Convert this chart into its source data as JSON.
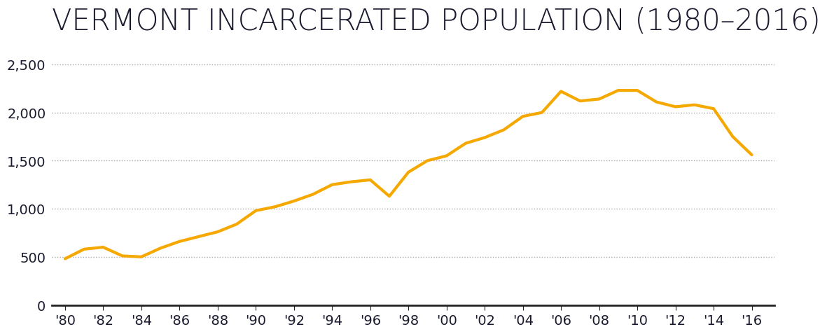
{
  "title": "VERMONT INCARCERATED POPULATION (1980–2016)",
  "line_color": "#F5A800",
  "line_width": 3.0,
  "background_color": "#ffffff",
  "years": [
    1980,
    1981,
    1982,
    1983,
    1984,
    1985,
    1986,
    1987,
    1988,
    1989,
    1990,
    1991,
    1992,
    1993,
    1994,
    1995,
    1996,
    1997,
    1998,
    1999,
    2000,
    2001,
    2002,
    2003,
    2004,
    2005,
    2006,
    2007,
    2008,
    2009,
    2010,
    2011,
    2012,
    2013,
    2014,
    2015,
    2016
  ],
  "values": [
    480,
    580,
    600,
    510,
    500,
    590,
    660,
    710,
    760,
    840,
    980,
    1020,
    1080,
    1150,
    1250,
    1280,
    1300,
    1130,
    1380,
    1500,
    1550,
    1680,
    1740,
    1820,
    1960,
    2000,
    2220,
    2120,
    2140,
    2230,
    2230,
    2110,
    2060,
    2080,
    2040,
    1750,
    1560
  ],
  "yticks": [
    0,
    500,
    1000,
    1500,
    2000,
    2500
  ],
  "ylim": [
    0,
    2700
  ],
  "xtick_labels": [
    "'80",
    "'82",
    "'84",
    "'86",
    "'88",
    "'90",
    "'92",
    "'94",
    "'96",
    "'98",
    "'00",
    "'02",
    "'04",
    "'06",
    "'08",
    "'10",
    "'12",
    "'14",
    "'16"
  ],
  "xtick_years": [
    1980,
    1982,
    1984,
    1986,
    1988,
    1990,
    1992,
    1994,
    1996,
    1998,
    2000,
    2002,
    2004,
    2006,
    2008,
    2010,
    2012,
    2014,
    2016
  ],
  "title_fontsize": 30,
  "tick_fontsize": 14,
  "label_color": "#1a1a2e",
  "grid_color": "#aaaaaa",
  "grid_linestyle": ":",
  "grid_linewidth": 1.0,
  "spine_color": "#222222",
  "spine_linewidth": 2.0
}
